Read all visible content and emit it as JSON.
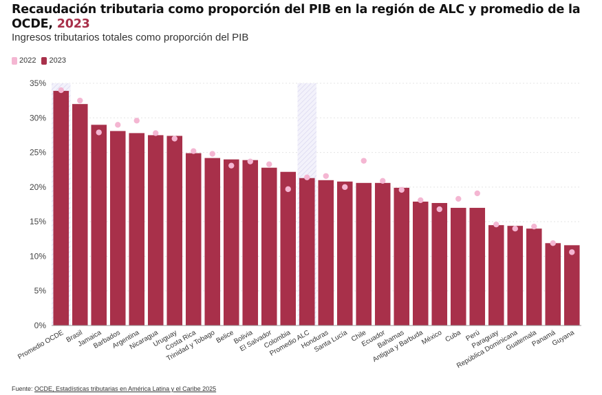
{
  "header": {
    "title_main": "Recaudación tributaria como proporción del PIB en la región de ALC y promedio de la OCDE, ",
    "title_year": "2023",
    "subtitle": "Ingresos tributarios totales como proporción del PIB"
  },
  "legend": {
    "items": [
      {
        "label": "2022",
        "color": "#f4b6d2"
      },
      {
        "label": "2023",
        "color": "#a8304a"
      }
    ]
  },
  "footer": {
    "prefix": "Fuente: ",
    "link_text": "OCDE, Estadísticas tributarias en América Latina y el Caribe 2025"
  },
  "chart_data": {
    "type": "bar",
    "ylim": [
      0,
      35
    ],
    "yticks": [
      0,
      5,
      10,
      15,
      20,
      25,
      30,
      35
    ],
    "ytick_labels": [
      "0%",
      "5%",
      "10%",
      "15%",
      "20%",
      "25%",
      "30%",
      "35%"
    ],
    "grid": true,
    "legend_position": "top-left",
    "highlighted_categories": [
      "Promedio OCDE",
      "Promedio ALC"
    ],
    "categories": [
      "Promedio OCDE",
      "Brasil",
      "Jamaica",
      "Barbados",
      "Argentina",
      "Nicaragua",
      "Uruguay",
      "Costa Rica",
      "Trinidad y Tobago",
      "Belice",
      "Bolivia",
      "El Salvador",
      "Colombia",
      "Promedio ALC",
      "Honduras",
      "Santa Lucía",
      "Chile",
      "Ecuador",
      "Bahamas",
      "Antigua y Barbuda",
      "México",
      "Cuba",
      "Perú",
      "Paraguay",
      "República Dominicana",
      "Guatemala",
      "Panamá",
      "Guyana"
    ],
    "series": [
      {
        "name": "2023",
        "type": "bar",
        "color": "#a8304a",
        "values": [
          33.9,
          32.0,
          29.0,
          28.1,
          27.8,
          27.5,
          27.4,
          24.9,
          24.2,
          24.0,
          23.9,
          22.8,
          22.2,
          21.3,
          21.0,
          20.8,
          20.6,
          20.6,
          19.9,
          17.9,
          17.7,
          17.0,
          17.0,
          14.5,
          14.4,
          14.0,
          11.9,
          11.6
        ]
      },
      {
        "name": "2022",
        "type": "dot",
        "color": "#f4b6d2",
        "values": [
          34.0,
          32.5,
          27.9,
          29.0,
          29.6,
          27.8,
          27.0,
          25.2,
          24.8,
          23.1,
          23.7,
          23.3,
          19.7,
          21.4,
          21.6,
          20.0,
          23.8,
          20.9,
          19.6,
          18.1,
          16.8,
          18.3,
          19.1,
          14.6,
          14.0,
          14.3,
          11.9,
          10.6
        ]
      }
    ]
  }
}
